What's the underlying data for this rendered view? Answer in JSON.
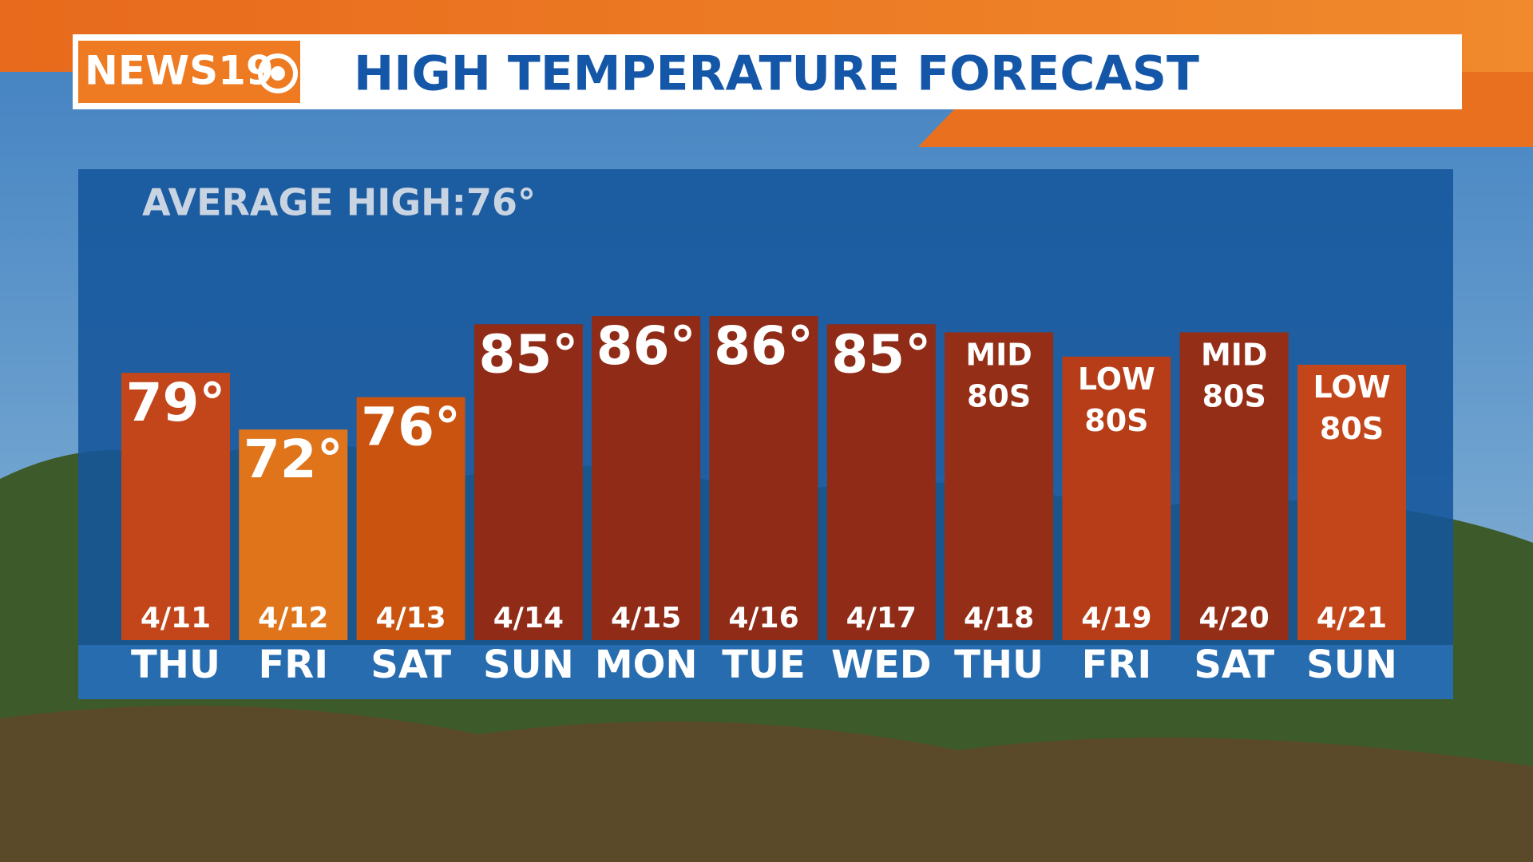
{
  "chart_data": {
    "type": "bar",
    "logo": "NEWS19",
    "title": "HIGH TEMPERATURE FORECAST",
    "subtitle": "AVERAGE HIGH:76°",
    "categories": [
      "THU",
      "FRI",
      "SAT",
      "SUN",
      "MON",
      "TUE",
      "WED",
      "THU",
      "FRI",
      "SAT",
      "SUN"
    ],
    "dates": [
      "4/11",
      "4/12",
      "4/13",
      "4/14",
      "4/15",
      "4/16",
      "4/17",
      "4/18",
      "4/19",
      "4/20",
      "4/21"
    ],
    "values": [
      79,
      72,
      76,
      85,
      86,
      86,
      85,
      84,
      81,
      84,
      80
    ],
    "value_labels": [
      "79°",
      "72°",
      "76°",
      "85°",
      "86°",
      "86°",
      "85°",
      "MID 80S",
      "LOW 80S",
      "MID 80S",
      "LOW 80S"
    ],
    "colors": [
      "#c2461a",
      "#e0741a",
      "#c9530f",
      "#8f2b17",
      "#8f2b17",
      "#8f2b17",
      "#8f2b17",
      "#952e17",
      "#b63d18",
      "#952e17",
      "#c2461a"
    ],
    "ylim": [
      46,
      100
    ]
  }
}
